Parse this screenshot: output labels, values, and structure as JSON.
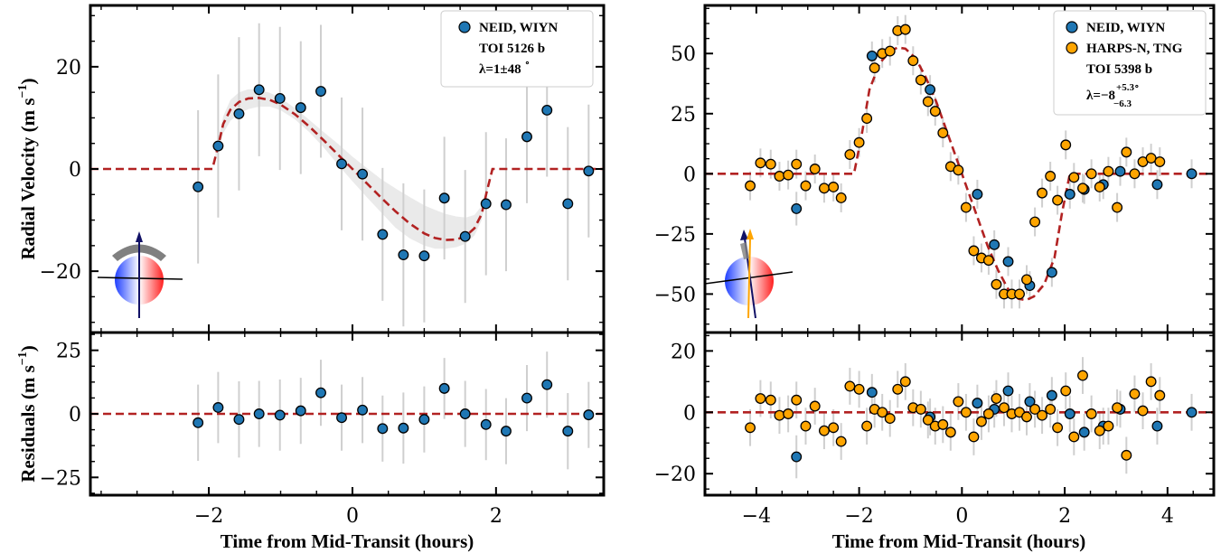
{
  "chart_data": [
    {
      "type": "scatter",
      "panel": "left-top",
      "xlim": [
        -3.65,
        3.5
      ],
      "ylim": [
        -32,
        32
      ],
      "yticks": [
        -20,
        0,
        20
      ],
      "ylabel": "Radial Velocity (m s",
      "ylabel_exp": "−1",
      "ylabel_close": ")",
      "legend": {
        "series": "NEID, WIYN",
        "target": "TOI 5126 b",
        "lambda": "λ=1±48",
        "lambda_deg": "∘"
      },
      "series": [
        {
          "name": "NEID, WIYN",
          "color": "#1f77b4",
          "x": [
            -2.15,
            -1.87,
            -1.58,
            -1.3,
            -1.01,
            -0.72,
            -0.44,
            -0.15,
            0.14,
            0.42,
            0.71,
            1.0,
            1.28,
            1.57,
            1.86,
            2.14,
            2.43,
            2.71,
            3.0,
            3.29
          ],
          "y": [
            -3.5,
            4.5,
            10.8,
            15.5,
            13.8,
            12.0,
            15.2,
            1.0,
            -1.0,
            -12.8,
            -16.8,
            -17.0,
            -5.7,
            -13.2,
            -6.8,
            -7.0,
            6.3,
            11.5,
            -6.8,
            -0.4
          ],
          "err": [
            15,
            14,
            15,
            13,
            14,
            13,
            13,
            13,
            13,
            13,
            14,
            13,
            12,
            13,
            14,
            13,
            13,
            13,
            15,
            13
          ]
        }
      ],
      "model": {
        "color": "#b22222",
        "x": [
          -3.65,
          -1.95,
          -1.87,
          -1.8,
          -1.7,
          -1.58,
          -1.45,
          -1.3,
          -1.15,
          -1.0,
          -0.8,
          -0.6,
          -0.4,
          -0.2,
          0.0,
          0.2,
          0.4,
          0.6,
          0.8,
          1.0,
          1.15,
          1.3,
          1.45,
          1.58,
          1.7,
          1.8,
          1.87,
          1.95,
          3.5
        ],
        "y": [
          0,
          0,
          4.5,
          8.8,
          11.6,
          13.1,
          13.8,
          13.9,
          13.5,
          12.6,
          10.7,
          8.3,
          5.6,
          2.8,
          0.0,
          -2.8,
          -5.6,
          -8.3,
          -10.7,
          -12.6,
          -13.5,
          -13.9,
          -13.8,
          -13.1,
          -11.6,
          -8.8,
          -4.5,
          0,
          0
        ],
        "band_upper": [
          0,
          0,
          5.5,
          10.3,
          13.5,
          15.0,
          15.6,
          15.5,
          14.9,
          13.9,
          11.9,
          9.6,
          7.2,
          4.9,
          2.4,
          0.2,
          -2.0,
          -3.8,
          -5.5,
          -7.1,
          -8.0,
          -8.8,
          -9.3,
          -9.5,
          -9.0,
          -7.2,
          -3.8,
          0,
          0
        ],
        "band_lower": [
          0,
          0,
          3.5,
          7.0,
          9.4,
          10.8,
          11.7,
          12.2,
          12.2,
          11.5,
          9.7,
          7.2,
          4.2,
          0.8,
          -2.4,
          -5.5,
          -8.5,
          -11.5,
          -13.6,
          -15.0,
          -15.6,
          -15.6,
          -15.3,
          -14.6,
          -13.0,
          -10.0,
          -5.2,
          0,
          0
        ]
      }
    },
    {
      "type": "scatter",
      "panel": "left-bottom",
      "xlim": [
        -3.65,
        3.5
      ],
      "ylim": [
        -32,
        32
      ],
      "yticks": [
        -25,
        0,
        25
      ],
      "xticks": [
        -2,
        0,
        2
      ],
      "ylabel": "Residuals (m s",
      "ylabel_exp": "−1",
      "ylabel_close": ")",
      "xlabel": "Time from Mid-Transit (hours)",
      "series": [
        {
          "name": "NEID, WIYN",
          "color": "#1f77b4",
          "x": [
            -2.15,
            -1.87,
            -1.58,
            -1.3,
            -1.01,
            -0.72,
            -0.44,
            -0.15,
            0.14,
            0.42,
            0.71,
            1.0,
            1.28,
            1.57,
            1.86,
            2.14,
            2.43,
            2.71,
            3.0,
            3.29
          ],
          "y": [
            -3.5,
            2.5,
            -2.2,
            0.0,
            -0.5,
            1.2,
            8.3,
            -1.5,
            1.5,
            -5.8,
            -5.6,
            -2.2,
            10.0,
            0.0,
            -4.2,
            -6.8,
            6.2,
            11.5,
            -6.8,
            -0.4
          ],
          "err": [
            15,
            14,
            15,
            13,
            14,
            13,
            13,
            13,
            13,
            13,
            14,
            13,
            12,
            13,
            14,
            13,
            13,
            13,
            15,
            13
          ]
        }
      ]
    },
    {
      "type": "scatter",
      "panel": "right-top",
      "xlim": [
        -5.0,
        4.9
      ],
      "ylim": [
        -66,
        70
      ],
      "yticks": [
        -50,
        -25,
        0,
        25,
        50
      ],
      "legend": {
        "series": [
          "NEID, WIYN",
          "HARPS-N, TNG"
        ],
        "target": "TOI 5398 b",
        "lambda": "λ=−8",
        "lambda_sup": "+5.3",
        "lambda_sub": "−6.3",
        "lambda_deg": "∘"
      },
      "series": [
        {
          "name": "NEID, WIYN",
          "color": "#1f77b4",
          "x": [
            -3.22,
            -1.75,
            -0.62,
            0.3,
            0.63,
            0.9,
            1.32,
            1.75,
            2.1,
            2.38,
            2.75,
            3.08,
            3.8,
            4.47
          ],
          "y": [
            -14.5,
            49.0,
            35.0,
            -8.5,
            -29.5,
            -36.5,
            -46.5,
            -41.0,
            -8.5,
            -6.5,
            -4.5,
            1.0,
            -4.5,
            0.0
          ],
          "err": [
            7,
            6,
            6,
            6,
            6,
            6,
            6,
            6,
            6,
            6,
            6,
            6,
            6,
            6
          ]
        },
        {
          "name": "HARPS-N, TNG",
          "color": "#ffa500",
          "x": [
            -4.12,
            -3.92,
            -3.72,
            -3.55,
            -3.38,
            -3.22,
            -3.04,
            -2.86,
            -2.68,
            -2.5,
            -2.35,
            -2.18,
            -2.0,
            -1.85,
            -1.7,
            -1.55,
            -1.4,
            -1.25,
            -1.1,
            -0.95,
            -0.8,
            -0.66,
            -0.52,
            -0.37,
            -0.22,
            -0.07,
            0.08,
            0.23,
            0.38,
            0.52,
            0.67,
            0.82,
            0.97,
            1.12,
            1.26,
            1.42,
            1.56,
            1.72,
            1.86,
            2.02,
            2.18,
            2.35,
            2.52,
            2.68,
            2.85,
            3.02,
            3.2,
            3.36,
            3.52,
            3.68,
            3.85
          ],
          "y": [
            -5.0,
            4.5,
            4.0,
            -1.0,
            -0.5,
            4.0,
            -5.0,
            2.0,
            -6.0,
            -5.5,
            -10.0,
            8.0,
            13.0,
            23.0,
            44.0,
            50.0,
            51.0,
            59.5,
            60.0,
            47.0,
            39.0,
            30.0,
            26.0,
            17.0,
            3.0,
            1.5,
            -14.0,
            -32.0,
            -35.0,
            -36.0,
            -46.0,
            -50.0,
            -50.0,
            -50.0,
            -44.0,
            -20.0,
            -8.0,
            -1.0,
            -11.0,
            12.0,
            -1.5,
            -6.0,
            0.0,
            -5.5,
            1.0,
            -14.0,
            9.0,
            0.0,
            5.0,
            6.5,
            5.0
          ],
          "err": [
            6,
            6,
            6,
            6,
            6,
            6,
            6,
            6,
            6,
            6,
            6,
            6,
            6,
            6,
            6,
            6,
            6,
            6,
            6,
            6,
            6,
            6,
            6,
            6,
            6,
            6,
            6,
            6,
            6,
            6,
            6,
            6,
            6,
            6,
            6,
            6,
            6,
            6,
            6,
            6,
            6,
            6,
            6,
            6,
            6,
            6,
            6,
            6,
            6,
            6,
            6
          ]
        }
      ],
      "model": {
        "color": "#b22222",
        "x": [
          -5.0,
          -2.1,
          -1.95,
          -1.8,
          -1.6,
          -1.4,
          -1.25,
          -1.1,
          -0.9,
          -0.7,
          -0.5,
          -0.3,
          -0.1,
          0.1,
          0.3,
          0.5,
          0.7,
          0.9,
          1.1,
          1.25,
          1.4,
          1.6,
          1.8,
          1.95,
          2.1,
          4.9
        ],
        "y": [
          0,
          0,
          16,
          35,
          46,
          51,
          52.5,
          52,
          48,
          40,
          30,
          18,
          6,
          -6,
          -18,
          -30,
          -40,
          -48,
          -52,
          -52.5,
          -51,
          -46,
          -35,
          -16,
          0,
          0
        ]
      }
    },
    {
      "type": "scatter",
      "panel": "right-bottom",
      "xlim": [
        -5.0,
        4.9
      ],
      "ylim": [
        -27,
        26
      ],
      "yticks": [
        -20,
        0,
        20
      ],
      "xticks": [
        -4,
        -2,
        0,
        2,
        4
      ],
      "xlabel": "Time from Mid-Transit (hours)",
      "series": [
        {
          "name": "NEID, WIYN",
          "color": "#1f77b4",
          "x": [
            -3.22,
            -1.75,
            -0.62,
            0.3,
            0.63,
            0.9,
            1.32,
            1.75,
            2.1,
            2.38,
            2.75,
            3.08,
            3.8,
            4.47
          ],
          "y": [
            -14.5,
            6.5,
            -1.5,
            3.0,
            1.0,
            7.0,
            3.5,
            5.5,
            -0.5,
            -6.5,
            -4.5,
            1.0,
            -4.5,
            0.0
          ],
          "err": [
            7,
            6,
            6,
            6,
            6,
            6,
            6,
            6,
            6,
            6,
            6,
            6,
            6,
            6
          ]
        },
        {
          "name": "HARPS-N, TNG",
          "color": "#ffa500",
          "x": [
            -4.12,
            -3.92,
            -3.72,
            -3.55,
            -3.38,
            -3.22,
            -3.04,
            -2.86,
            -2.68,
            -2.5,
            -2.35,
            -2.18,
            -2.0,
            -1.85,
            -1.7,
            -1.55,
            -1.4,
            -1.25,
            -1.1,
            -0.95,
            -0.8,
            -0.66,
            -0.52,
            -0.37,
            -0.22,
            -0.07,
            0.08,
            0.23,
            0.38,
            0.52,
            0.67,
            0.82,
            0.97,
            1.12,
            1.26,
            1.42,
            1.56,
            1.72,
            1.86,
            2.02,
            2.18,
            2.35,
            2.52,
            2.68,
            2.85,
            3.02,
            3.2,
            3.36,
            3.52,
            3.68,
            3.85
          ],
          "y": [
            -5.0,
            4.5,
            4.0,
            -1.0,
            -0.5,
            4.0,
            -4.5,
            2.0,
            -6.0,
            -5.0,
            -9.5,
            8.5,
            7.5,
            -4.5,
            1.0,
            0.0,
            -2.0,
            7.5,
            10.0,
            1.5,
            1.0,
            -2.5,
            -4.5,
            -4.0,
            -6.5,
            3.5,
            0.0,
            -8.0,
            -3.0,
            -0.5,
            4.5,
            1.5,
            -0.5,
            0.0,
            -1.5,
            1.0,
            -1.0,
            1.0,
            -5.0,
            7.0,
            -8.0,
            12.0,
            -0.5,
            -6.0,
            -4.5,
            1.5,
            -14.0,
            6.0,
            0.5,
            10.0,
            5.5
          ],
          "err": [
            6,
            6,
            6,
            6,
            6,
            6,
            6,
            6,
            6,
            6,
            6,
            6,
            6,
            6,
            6,
            6,
            6,
            6,
            6,
            6,
            6,
            6,
            6,
            6,
            6,
            6,
            6,
            6,
            6,
            6,
            6,
            6,
            6,
            6,
            6,
            6,
            6,
            6,
            6,
            6,
            6,
            6,
            6,
            6,
            6,
            6,
            6,
            6,
            6,
            6,
            6
          ]
        }
      ]
    }
  ]
}
